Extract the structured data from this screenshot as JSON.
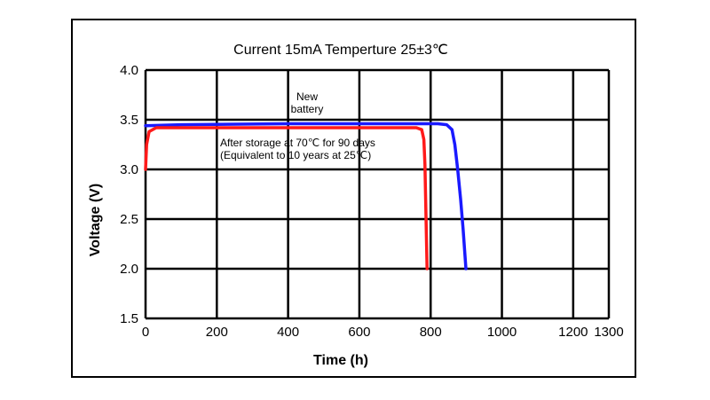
{
  "chart_data": {
    "type": "line",
    "title": "Current 15mA  Temperture 25±3℃",
    "xlabel": "Time (h)",
    "ylabel": "Voltage (V)",
    "xlim": [
      0,
      1300
    ],
    "ylim": [
      1.5,
      4.0
    ],
    "xticks": [
      0,
      200,
      400,
      600,
      800,
      1000,
      1200,
      1300
    ],
    "yticks": [
      1.5,
      2.0,
      2.5,
      3.0,
      3.5,
      4.0
    ],
    "xtick_labels": [
      "0",
      "200",
      "400",
      "600",
      "800",
      "1000",
      "1200",
      "1300"
    ],
    "ytick_labels": [
      "1.5",
      "2.0",
      "2.5",
      "3.0",
      "3.5",
      "4.0"
    ],
    "grid": true,
    "series": [
      {
        "name": "New battery",
        "color": "#1a1aff",
        "points": [
          [
            0,
            3.44
          ],
          [
            100,
            3.45
          ],
          [
            400,
            3.46
          ],
          [
            700,
            3.46
          ],
          [
            820,
            3.46
          ],
          [
            845,
            3.45
          ],
          [
            860,
            3.4
          ],
          [
            868,
            3.25
          ],
          [
            876,
            3.0
          ],
          [
            884,
            2.7
          ],
          [
            891,
            2.4
          ],
          [
            896,
            2.15
          ],
          [
            899,
            2.0
          ]
        ]
      },
      {
        "name": "After storage at 70℃ for 90 days (Equivalent to 10 years at 25℃)",
        "color": "#ff1a1a",
        "points": [
          [
            0,
            3.0
          ],
          [
            3,
            3.25
          ],
          [
            10,
            3.38
          ],
          [
            30,
            3.42
          ],
          [
            200,
            3.42
          ],
          [
            500,
            3.42
          ],
          [
            760,
            3.42
          ],
          [
            775,
            3.4
          ],
          [
            781,
            3.3
          ],
          [
            784,
            3.05
          ],
          [
            786,
            2.7
          ],
          [
            788,
            2.35
          ],
          [
            790,
            2.0
          ]
        ]
      }
    ],
    "annotations": [
      {
        "lines": [
          "New",
          "battery"
        ],
        "series": 0
      },
      {
        "lines": [
          "After storage at 70℃ for 90 days",
          "(Equivalent to 10 years at 25℃)"
        ],
        "series": 1
      }
    ]
  }
}
